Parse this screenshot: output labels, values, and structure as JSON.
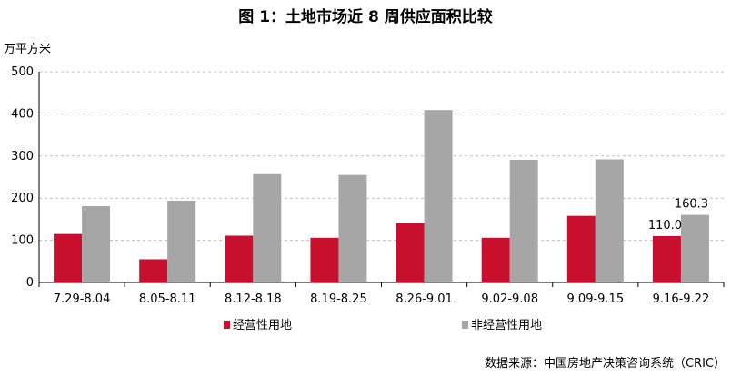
{
  "title": "图 1：土地市场近 8 周供应面积比较",
  "unit_label": "万平方米",
  "source": "数据来源：中国房地产决策咨询系统（CRIC）",
  "colors": {
    "operating": "#c8102e",
    "non_operating": "#a6a6a6",
    "grid": "#bfbfbf"
  },
  "chart_data": {
    "type": "bar",
    "title": "图 1：土地市场近 8 周供应面积比较",
    "ylabel": "万平方米",
    "ylim": [
      0,
      500
    ],
    "yticks": [
      0,
      100,
      200,
      300,
      400,
      500
    ],
    "grid": true,
    "legend_position": "bottom",
    "categories": [
      "7.29-8.04",
      "8.05-8.11",
      "8.12-8.18",
      "8.19-8.25",
      "8.26-9.01",
      "9.02-9.08",
      "9.09-9.15",
      "9.16-9.22"
    ],
    "series": [
      {
        "name": "经营性用地",
        "values": [
          115,
          55,
          111,
          106,
          141,
          106,
          158,
          110.0
        ]
      },
      {
        "name": "非经营性用地",
        "values": [
          181,
          194,
          257,
          255,
          409,
          291,
          292,
          160.3
        ]
      }
    ],
    "data_labels": [
      {
        "series": 0,
        "index": 7,
        "text": "110.0"
      },
      {
        "series": 1,
        "index": 7,
        "text": "160.3"
      }
    ]
  }
}
